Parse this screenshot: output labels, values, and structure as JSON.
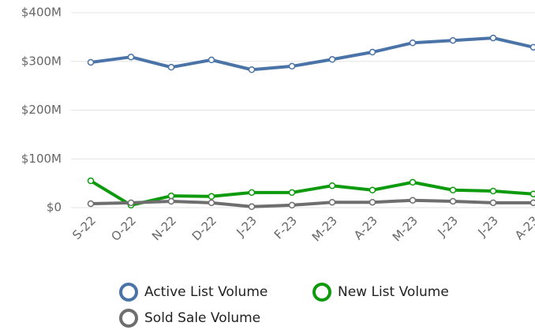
{
  "chart_data": {
    "type": "line",
    "categories": [
      "S-22",
      "O-22",
      "N-22",
      "D-22",
      "J-23",
      "F-23",
      "M-23",
      "A-23",
      "M-23",
      "J-23",
      "J-23",
      "A-23"
    ],
    "series": [
      {
        "name": "Active List Volume",
        "color": "#4a73a8",
        "values": [
          298,
          309,
          288,
          303,
          283,
          290,
          304,
          319,
          338,
          343,
          348,
          329
        ]
      },
      {
        "name": "New List Volume",
        "color": "#0d9a0d",
        "values": [
          55,
          5,
          24,
          23,
          31,
          31,
          45,
          36,
          52,
          36,
          34,
          28
        ]
      },
      {
        "name": "Sold Sale Volume",
        "color": "#6e6e6e",
        "values": [
          8,
          10,
          13,
          10,
          2,
          5,
          11,
          11,
          15,
          13,
          10,
          10
        ]
      }
    ],
    "ylim": [
      0,
      400
    ],
    "yticks": [
      {
        "value": 0,
        "label": "$0"
      },
      {
        "value": 100,
        "label": "$100M"
      },
      {
        "value": 200,
        "label": "$200M"
      },
      {
        "value": 300,
        "label": "$300M"
      },
      {
        "value": 400,
        "label": "$400M"
      }
    ],
    "grid": true
  }
}
